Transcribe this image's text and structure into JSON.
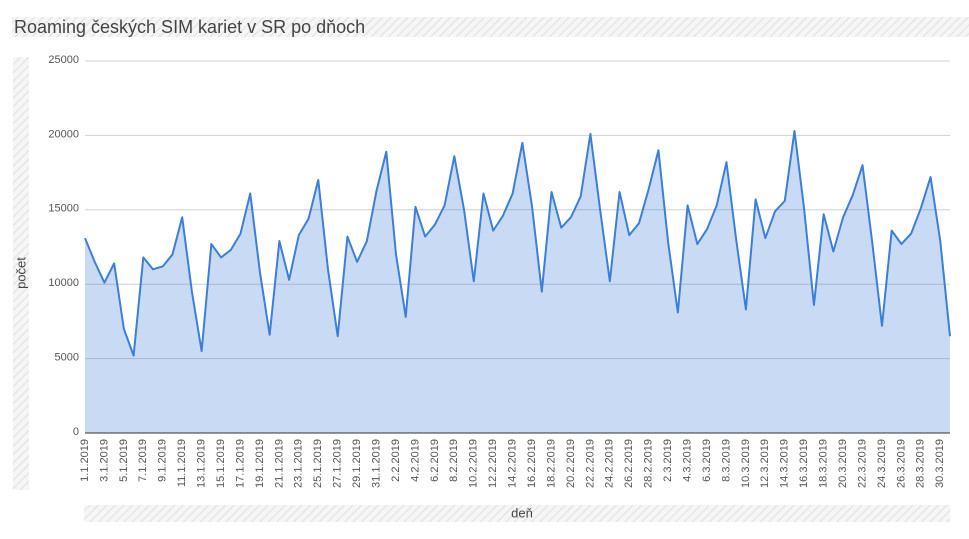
{
  "chart_data": {
    "type": "area",
    "title": "Roaming českých SIM kariet v SR po dňoch",
    "x_label": "deň",
    "y_label": "počet",
    "categories": [
      "1.1.2019",
      null,
      "3.1.2019",
      null,
      "5.1.2019",
      null,
      "7.1.2019",
      null,
      "9.1.2019",
      null,
      "11.1.2019",
      null,
      "13.1.2019",
      null,
      "15.1.2019",
      null,
      "17.1.2019",
      null,
      "19.1.2019",
      null,
      "21.1.2019",
      null,
      "23.1.2019",
      null,
      "25.1.2019",
      null,
      "27.1.2019",
      null,
      "29.1.2019",
      null,
      "31.1.2019",
      null,
      "2.2.2019",
      null,
      "4.2.2019",
      null,
      "6.2.2019",
      null,
      "8.2.2019",
      null,
      "10.2.2019",
      null,
      "12.2.2019",
      null,
      "14.2.2019",
      null,
      "16.2.2019",
      null,
      "18.2.2019",
      null,
      "20.2.2019",
      null,
      "22.2.2019",
      null,
      "24.2.2019",
      null,
      "26.2.2019",
      null,
      "28.2.2019",
      null,
      "2.3.2019",
      null,
      "4.3.2019",
      null,
      "6.3.2019",
      null,
      "8.3.2019",
      null,
      "10.3.2019",
      null,
      "12.3.2019",
      null,
      "14.3.2019",
      null,
      "16.3.2019",
      null,
      "18.3.2019",
      null,
      "20.3.2019",
      null,
      "22.3.2019",
      null,
      "24.3.2019",
      null,
      "26.3.2019",
      null,
      "28.3.2019",
      null,
      "30.3.2019",
      null
    ],
    "series": [
      {
        "color": "#3c7fd9",
        "values": [
          13100,
          11500,
          10100,
          11400,
          7000,
          5200,
          11800,
          11000,
          11200,
          12000,
          14500,
          9500,
          5500,
          12700,
          11800,
          12300,
          13400,
          16100,
          10800,
          6600,
          12900,
          10300,
          13300,
          14400,
          17000,
          11000,
          6500,
          13200,
          11500,
          12900,
          16300,
          18900,
          12000,
          7800,
          15200,
          13200,
          14000,
          15300,
          18600,
          15000,
          10200,
          16100,
          13600,
          14600,
          16100,
          19500,
          15200,
          9500,
          16200,
          13800,
          14500,
          15900,
          20100,
          15000,
          10200,
          16200,
          13300,
          14100,
          16400,
          19000,
          12800,
          8100,
          15300,
          12700,
          13700,
          15300,
          18200,
          13000,
          8300,
          15700,
          13100,
          14900,
          15600,
          20300,
          15000,
          8600,
          14700,
          12200,
          14500,
          16000,
          18000,
          12800,
          7200,
          13600,
          12700,
          13400,
          15100,
          17200,
          12900,
          6500
        ]
      }
    ],
    "ylim": [
      0,
      25000
    ],
    "yticks": [
      0,
      5000,
      10000,
      15000,
      20000,
      25000
    ],
    "grid": true
  }
}
